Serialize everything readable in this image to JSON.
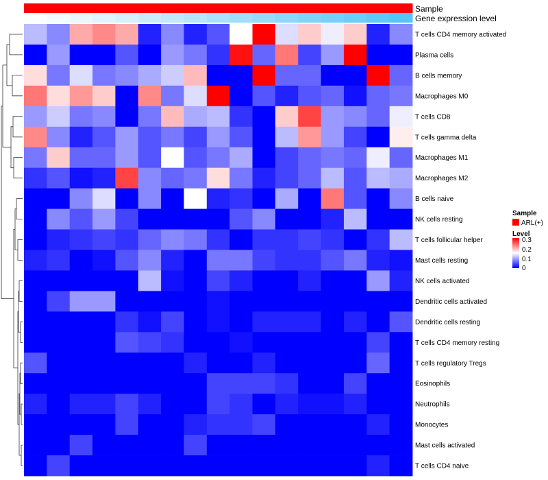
{
  "chart_data": {
    "type": "heatmap",
    "annotation_rows": [
      "Sample",
      "Gene expression level"
    ],
    "rows": [
      "T cells CD4 memory activated",
      "Plasma cells",
      "B cells memory",
      "Macrophages M0",
      "T cells CD8",
      "T cells gamma delta",
      "Macrophages M1",
      "Macrophages M2",
      "B cells naive",
      "NK cells resting",
      "T cells follicular helper",
      "Mast cells resting",
      "NK cells activated",
      "Dendritic cells activated",
      "Dendritic cells resting",
      "T cells CD4 memory resting",
      "T cells regulatory  Tregs",
      "Eosinophils",
      "Neutrophils",
      "Monocytes",
      "Mast cells activated",
      "T cells CD4 naive"
    ],
    "values": [
      [
        0.11,
        0.08,
        0.2,
        0.22,
        0.2,
        0.02,
        0.08,
        0.02,
        0.05,
        0.15,
        0.3,
        0.13,
        0.18,
        0.14,
        0.18,
        0.02,
        0.08
      ],
      [
        0.0,
        0.09,
        0.0,
        0.0,
        0.05,
        0.0,
        0.09,
        0.07,
        0.03,
        0.29,
        0.06,
        0.23,
        0.04,
        0.09,
        0.3,
        0.0,
        0.0
      ],
      [
        0.17,
        0.07,
        0.13,
        0.07,
        0.08,
        0.1,
        0.12,
        0.19,
        0.0,
        0.0,
        0.3,
        0.06,
        0.06,
        0.0,
        0.0,
        0.3,
        0.06
      ],
      [
        0.23,
        0.17,
        0.21,
        0.18,
        0.0,
        0.22,
        0.07,
        0.13,
        0.3,
        0.0,
        0.05,
        0.02,
        0.05,
        0.06,
        0.01,
        0.06,
        0.07
      ],
      [
        0.09,
        0.12,
        0.07,
        0.08,
        0.0,
        0.07,
        0.19,
        0.1,
        0.11,
        0.03,
        0.0,
        0.18,
        0.26,
        0.09,
        0.08,
        0.06,
        0.14
      ],
      [
        0.22,
        0.08,
        0.02,
        0.05,
        0.09,
        0.05,
        0.07,
        0.04,
        0.09,
        0.05,
        0.0,
        0.11,
        0.21,
        0.09,
        0.04,
        0.0,
        0.16
      ],
      [
        0.07,
        0.18,
        0.06,
        0.06,
        0.09,
        0.05,
        0.15,
        0.05,
        0.07,
        0.1,
        0.0,
        0.04,
        0.06,
        0.07,
        0.06,
        0.14,
        0.06
      ],
      [
        0.03,
        0.05,
        0.01,
        0.02,
        0.26,
        0.08,
        0.06,
        0.07,
        0.17,
        0.07,
        0.02,
        0.04,
        0.06,
        0.11,
        0.05,
        0.11,
        0.1
      ],
      [
        0.0,
        0.0,
        0.08,
        0.13,
        0.0,
        0.08,
        0.0,
        0.15,
        0.02,
        0.03,
        0.0,
        0.1,
        0.0,
        0.23,
        0.05,
        0.0,
        0.08
      ],
      [
        0.0,
        0.08,
        0.05,
        0.09,
        0.04,
        0.0,
        0.0,
        0.0,
        0.0,
        0.05,
        0.08,
        0.0,
        0.0,
        0.02,
        0.11,
        0.0,
        0.0
      ],
      [
        0.0,
        0.02,
        0.03,
        0.04,
        0.03,
        0.06,
        0.08,
        0.07,
        0.03,
        0.0,
        0.03,
        0.03,
        0.04,
        0.03,
        0.0,
        0.03,
        0.11
      ],
      [
        0.02,
        0.03,
        0.0,
        0.01,
        0.05,
        0.08,
        0.02,
        0.0,
        0.07,
        0.07,
        0.04,
        0.03,
        0.03,
        0.05,
        0.07,
        0.02,
        0.01
      ],
      [
        0.0,
        0.0,
        0.0,
        0.0,
        0.0,
        0.11,
        0.01,
        0.0,
        0.04,
        0.02,
        0.0,
        0.0,
        0.02,
        0.0,
        0.0,
        0.09,
        0.02
      ],
      [
        0.0,
        0.04,
        0.09,
        0.09,
        0.0,
        0.0,
        0.0,
        0.0,
        0.01,
        0.0,
        0.0,
        0.0,
        0.0,
        0.0,
        0.0,
        0.0,
        0.0
      ],
      [
        0.0,
        0.0,
        0.0,
        0.0,
        0.03,
        0.01,
        0.04,
        0.0,
        0.01,
        0.0,
        0.02,
        0.02,
        0.02,
        0.0,
        0.02,
        0.0,
        0.05
      ],
      [
        0.0,
        0.0,
        0.0,
        0.0,
        0.05,
        0.04,
        0.03,
        0.0,
        0.0,
        0.01,
        0.0,
        0.0,
        0.0,
        0.0,
        0.0,
        0.04,
        0.0
      ],
      [
        0.05,
        0.0,
        0.0,
        0.0,
        0.0,
        0.0,
        0.0,
        0.02,
        0.0,
        0.0,
        0.02,
        0.0,
        0.0,
        0.0,
        0.0,
        0.06,
        0.0
      ],
      [
        0.0,
        0.0,
        0.0,
        0.0,
        0.0,
        0.0,
        0.0,
        0.0,
        0.04,
        0.04,
        0.04,
        0.03,
        0.0,
        0.0,
        0.04,
        0.0,
        0.0
      ],
      [
        0.02,
        0.0,
        0.02,
        0.02,
        0.04,
        0.02,
        0.0,
        0.0,
        0.04,
        0.03,
        0.0,
        0.02,
        0.01,
        0.01,
        0.02,
        0.0,
        0.0
      ],
      [
        0.0,
        0.0,
        0.0,
        0.0,
        0.04,
        0.0,
        0.0,
        0.02,
        0.03,
        0.03,
        0.04,
        0.0,
        0.0,
        0.0,
        0.0,
        0.02,
        0.0
      ],
      [
        0.0,
        0.0,
        0.04,
        0.0,
        0.0,
        0.0,
        0.0,
        0.04,
        0.0,
        0.0,
        0.0,
        0.0,
        0.0,
        0.0,
        0.0,
        0.0,
        0.0
      ],
      [
        0.0,
        0.04,
        0.0,
        0.0,
        0.0,
        0.0,
        0.0,
        0.0,
        0.0,
        0.0,
        0.0,
        0.0,
        0.0,
        0.0,
        0.0,
        0.02,
        0.0
      ]
    ],
    "sample_annotation": [
      "ARL(+)",
      "ARL(+)",
      "ARL(+)",
      "ARL(+)",
      "ARL(+)",
      "ARL(+)",
      "ARL(+)",
      "ARL(+)",
      "ARL(+)",
      "ARL(+)",
      "ARL(+)",
      "ARL(+)",
      "ARL(+)",
      "ARL(+)",
      "ARL(+)",
      "ARL(+)",
      "ARL(+)"
    ],
    "gene_expression_level": [
      0.02,
      0.06,
      0.12,
      0.18,
      0.24,
      0.3,
      0.36,
      0.42,
      0.48,
      0.54,
      0.6,
      0.66,
      0.72,
      0.78,
      0.84,
      0.9,
      0.96
    ],
    "color_scale": {
      "low": "#0000ff",
      "mid": "#ffffff",
      "high": "#ff0000",
      "range": [
        0,
        0.3
      ],
      "midpoint": 0.15
    },
    "gene_expression_colors": {
      "low": "#ffffff",
      "high": "#4fc3f7"
    },
    "sample_color": "#ff0000",
    "legends": {
      "sample": {
        "title": "Sample",
        "entries": [
          {
            "label": "ARL(+)",
            "color": "#ff0000"
          }
        ]
      },
      "level": {
        "title": "Level",
        "ticks": [
          "0.3",
          "0.2",
          "0.1",
          "0"
        ]
      }
    }
  }
}
